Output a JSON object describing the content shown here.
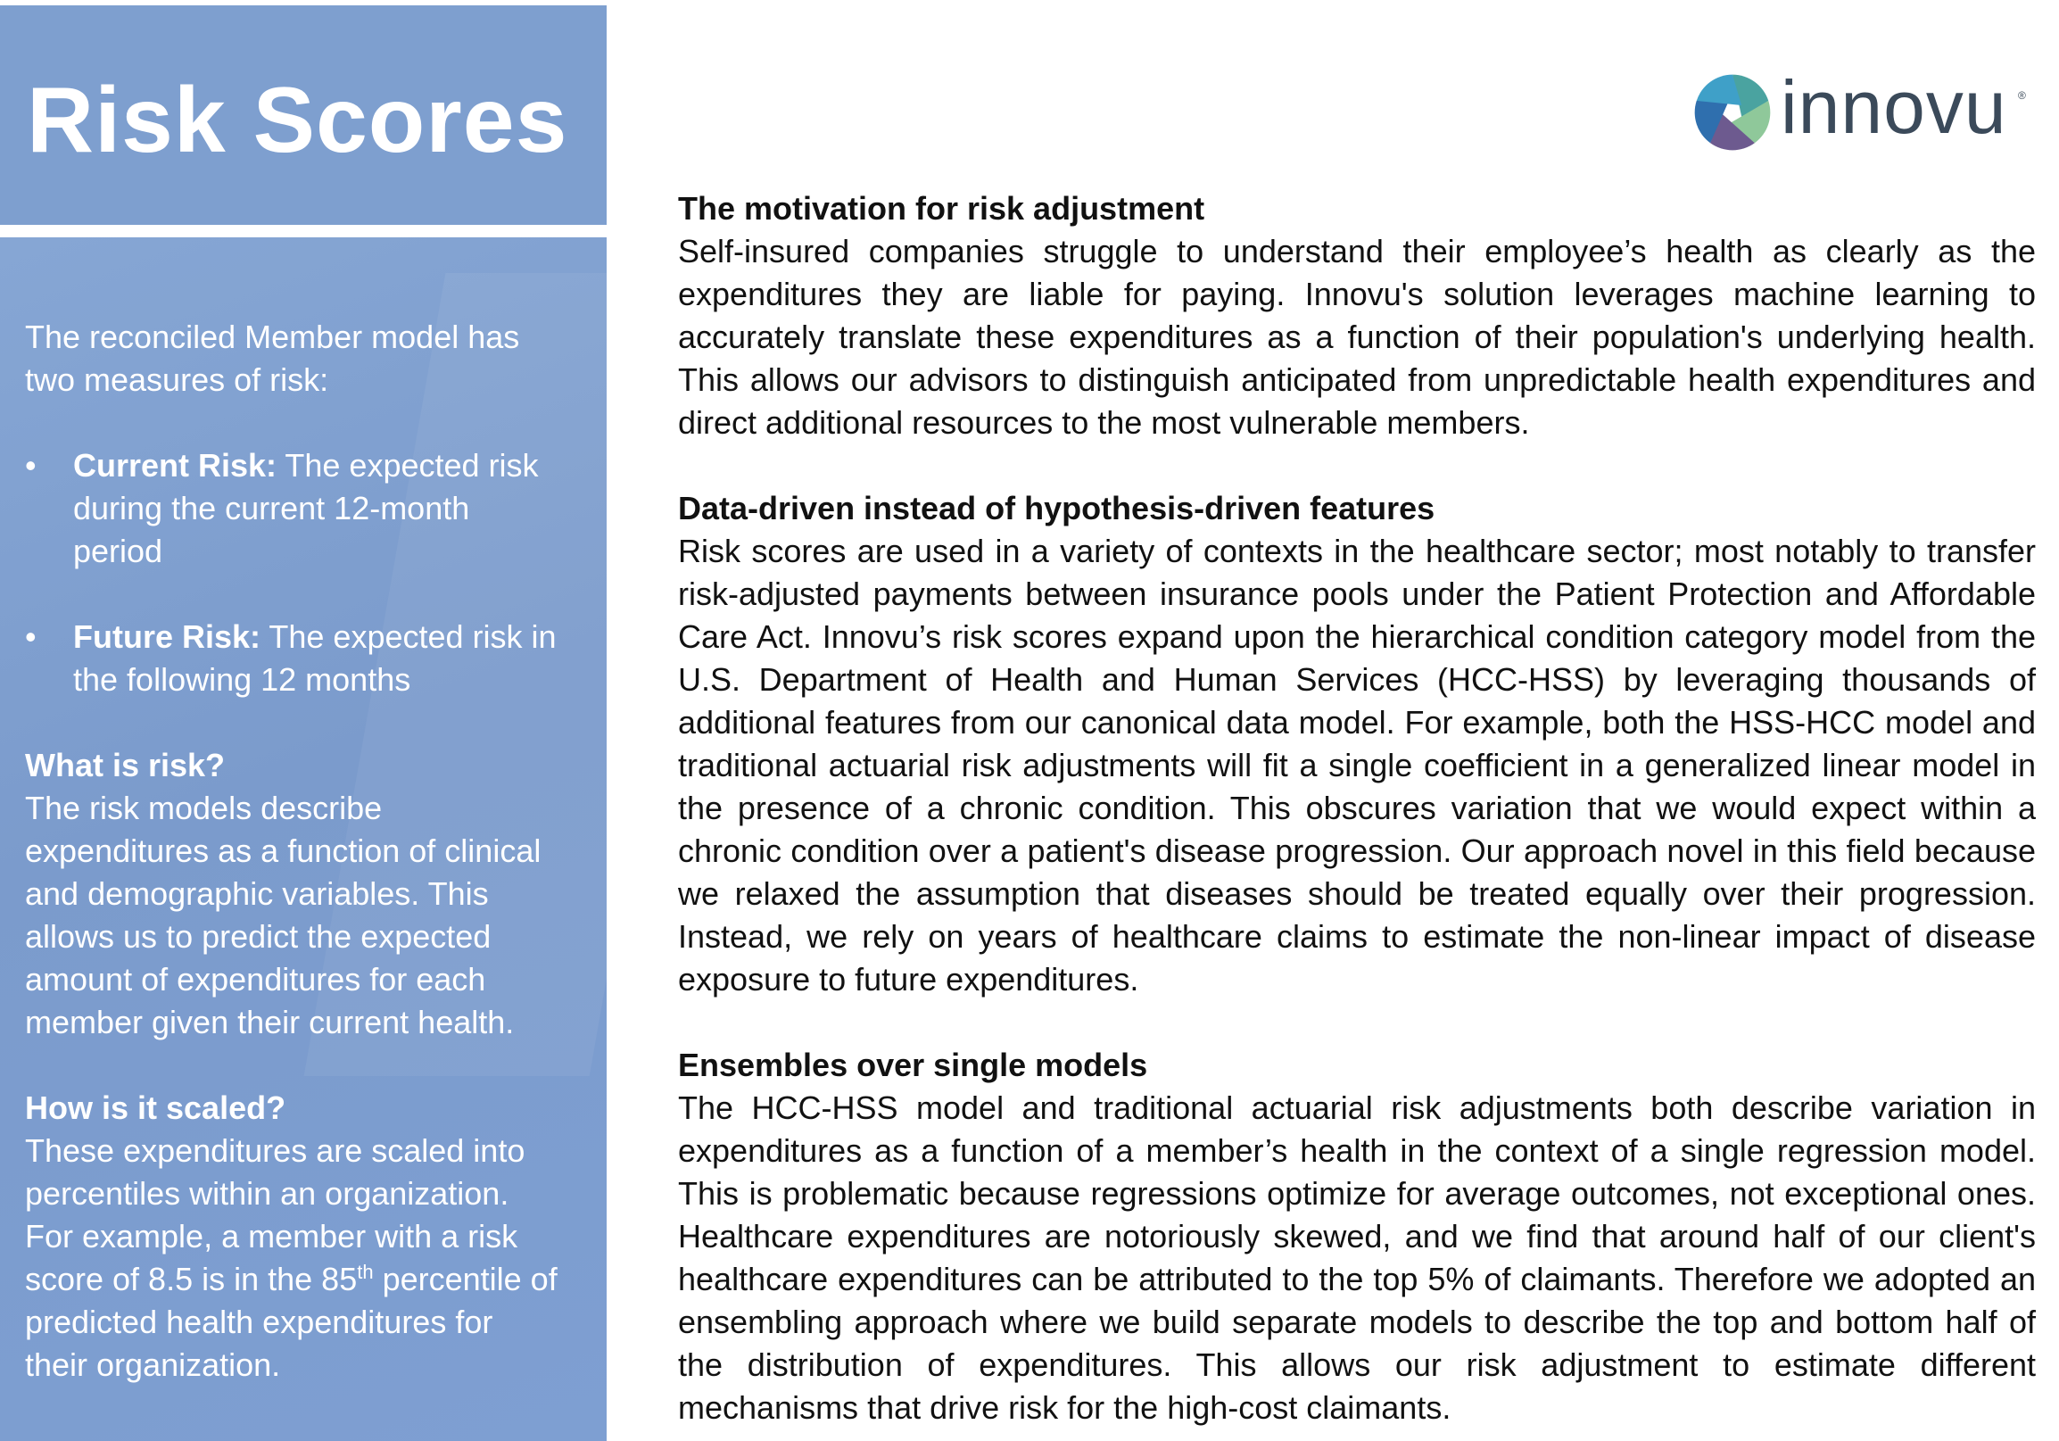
{
  "title": "Risk Scores",
  "logo": {
    "text": "innovu",
    "tm": "®"
  },
  "sidebar": {
    "intro": "The reconciled Member model has two measures of risk:",
    "bullets": [
      {
        "term": "Current Risk:",
        "text": " The expected risk during the current 12-month period"
      },
      {
        "term": "Future Risk:",
        "text": " The expected risk in the following 12 months"
      }
    ],
    "what_heading": "What is risk?",
    "what_text": "The risk models describe expenditures as a function of clinical and demographic variables. This allows us to predict the expected amount of expenditures for each member given their current health.",
    "scaled_heading": "How is it scaled?",
    "scaled_text_before": "These expenditures are scaled into percentiles within an organization. For example, a member with a risk score of 8.5 is in the 85",
    "scaled_sup": "th",
    "scaled_text_after": " percentile of predicted health expenditures for their organization."
  },
  "sections": [
    {
      "heading": "The motivation for risk adjustment",
      "body": "Self-insured companies struggle to understand their employee’s health as clearly as the expenditures they are liable for paying. Innovu's solution leverages machine learning to accurately translate these expenditures as a function of their population's underlying health. This allows our advisors to distinguish anticipated from unpredictable health expenditures and direct additional resources to the most vulnerable members."
    },
    {
      "heading": "Data-driven instead of hypothesis-driven features",
      "body": "Risk scores are used in a variety of contexts in the healthcare sector; most notably to transfer risk-adjusted payments between insurance pools under the Patient Protection and Affordable Care Act. Innovu’s risk scores expand upon the hierarchical condition category model from the U.S. Department of Health and Human Services (HCC-HSS) by leveraging thousands of additional features from our canonical data model. For example, both the HSS-HCC model and traditional actuarial risk adjustments will fit a single coefficient in a generalized linear model in the presence of a chronic condition. This obscures variation that we would expect within a chronic condition over a patient's disease progression. Our approach novel in this field because we relaxed the assumption that diseases should be treated equally over their progression. Instead, we rely on years of healthcare claims to estimate the non-linear impact of disease exposure to future expenditures."
    },
    {
      "heading": "Ensembles over single models",
      "body": "The HCC-HSS model and traditional actuarial risk adjustments both describe variation in expenditures as a function of a member’s health in the context of a single regression model.  This is problematic because regressions optimize for average outcomes, not exceptional ones.  Healthcare expenditures are notoriously skewed, and we find that around half of our client's healthcare expenditures can be attributed to the top 5% of claimants.  Therefore we adopted an ensembling approach where we build separate models to describe the top and bottom half of the distribution of expenditures.  This allows our risk adjustment to estimate different mechanisms that drive risk for the high-cost claimants."
    }
  ],
  "colors": {
    "title_box": "#7e9fcf",
    "sidebar": "#7e9fd2",
    "logo_text": "#3b4a5a",
    "logo_petals": [
      "#4aa3a0",
      "#8fc89a",
      "#6d5a8f",
      "#2f6fae",
      "#3fa0c8"
    ]
  }
}
